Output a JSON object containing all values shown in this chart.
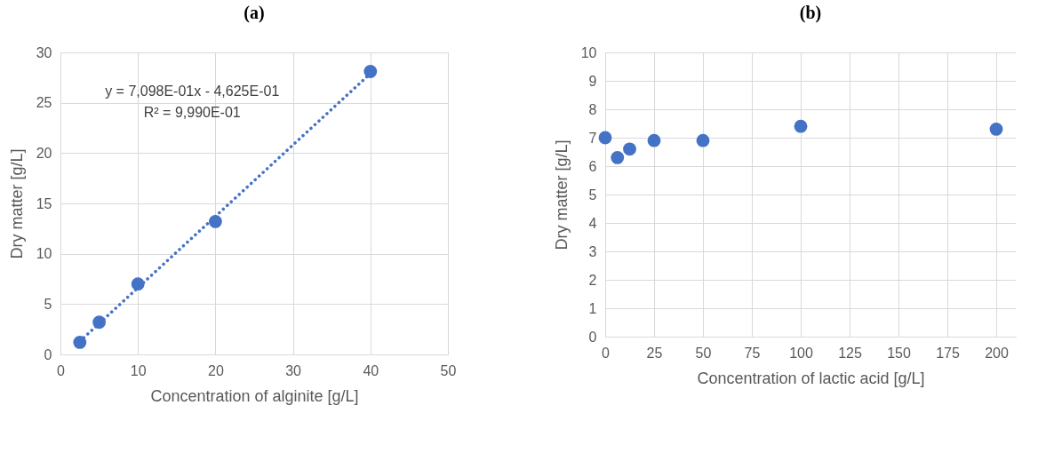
{
  "chart_data": [
    {
      "type": "scatter",
      "title": "(a)",
      "xlabel": "Concentration of alginite [g/L]",
      "ylabel": "Dry matter [g/L]",
      "series": [
        {
          "color": "#4472c4",
          "x": [
            2.5,
            5,
            10,
            20,
            40
          ],
          "values": [
            1.2,
            3.2,
            7.0,
            13.2,
            28.1
          ]
        },
        {
          "type": "line",
          "color": "#4472c4",
          "line_style": "dotted",
          "marker": "none",
          "x": [
            2.5,
            40
          ],
          "values": [
            1.3,
            27.9
          ]
        }
      ],
      "xlim": [
        0,
        50
      ],
      "xticks": [
        0,
        10,
        20,
        30,
        40,
        50
      ],
      "ylim": [
        0,
        30
      ],
      "yticks": [
        0,
        5,
        10,
        15,
        20,
        25,
        30
      ],
      "annotations": [
        "y = 7,098E-01x - 4,625E-01",
        "R² = 9,990E-01"
      ],
      "grid": true,
      "legend": false,
      "marker": "circle"
    },
    {
      "type": "scatter",
      "title": "(b)",
      "xlabel": "Concentration of lactic acid [g/L]",
      "ylabel": "Dry matter  [g/L]",
      "series": [
        {
          "color": "#4472c4",
          "x": [
            0,
            6.25,
            12.5,
            25,
            50,
            100,
            200
          ],
          "values": [
            7.0,
            6.3,
            6.6,
            6.9,
            6.9,
            7.4,
            7.3
          ]
        }
      ],
      "xlim": [
        0,
        210
      ],
      "xticks": [
        0,
        25,
        50,
        75,
        100,
        125,
        150,
        175,
        200
      ],
      "ylim": [
        0,
        10
      ],
      "yticks": [
        0,
        1,
        2,
        3,
        4,
        5,
        6,
        7,
        8,
        9,
        10
      ],
      "grid": true,
      "legend": false,
      "marker": "circle"
    }
  ]
}
